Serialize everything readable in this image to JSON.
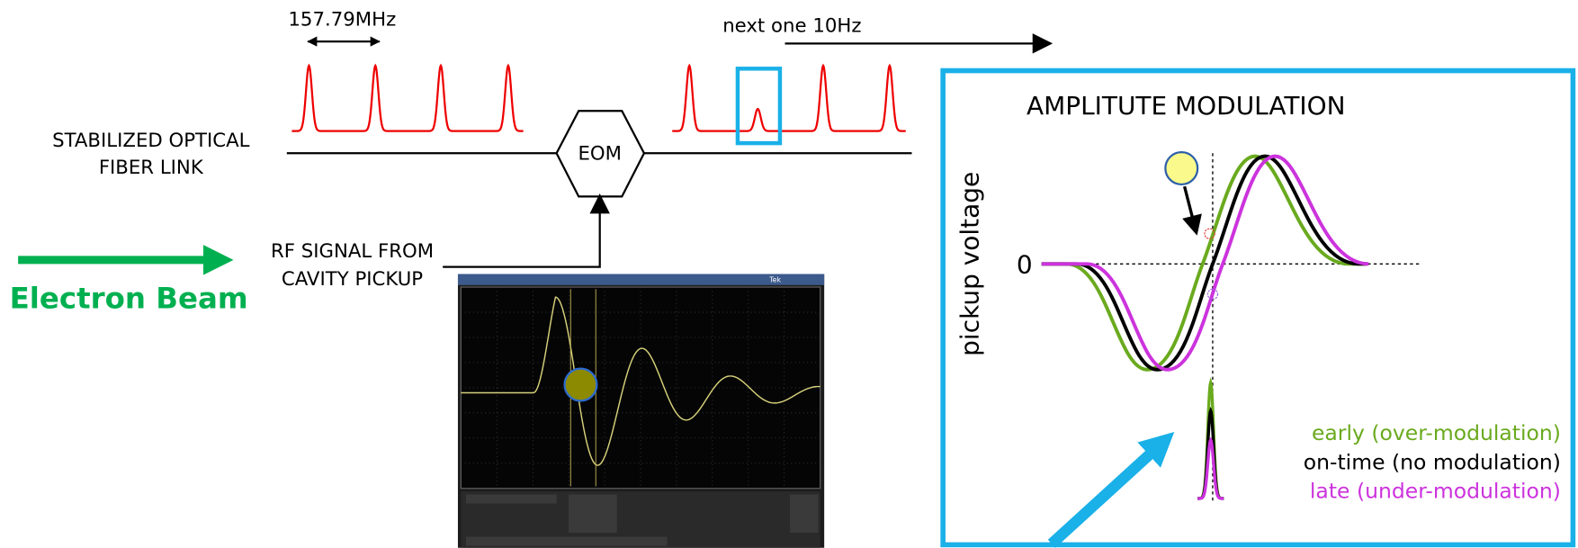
{
  "header": {
    "rep_rate": "157.79MHz",
    "next_pulse": "next one 10Hz"
  },
  "fiber_link": {
    "lines": [
      "STABILIZED OPTICAL",
      "FIBER LINK"
    ]
  },
  "modulator": {
    "label": "EOM"
  },
  "rf_signal": {
    "lines": [
      "RF SIGNAL FROM",
      "CAVITY PICKUP"
    ]
  },
  "beam": {
    "label": "Electron Beam"
  },
  "scope": {
    "brand": "Tek"
  },
  "panel": {
    "title": "AMPLITUTE MODULATION",
    "y_label": "pickup voltage",
    "zero_label": "0",
    "legend": [
      {
        "label": "early (over-modulation)",
        "color": "#6aaa1e"
      },
      {
        "label": "on-time (no modulation)",
        "color": "#000000"
      },
      {
        "label": "late (under-modulation)",
        "color": "#cc33dd"
      }
    ]
  }
}
